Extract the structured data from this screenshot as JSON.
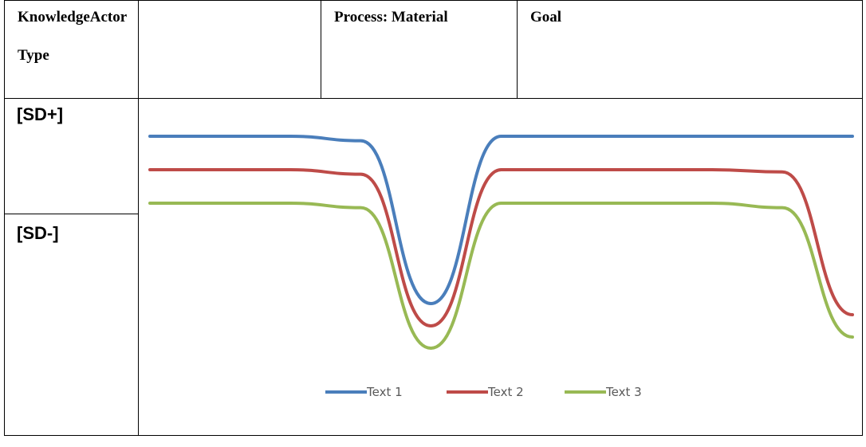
{
  "table": {
    "header": {
      "col1_line1": "KnowledgeActor",
      "col1_line2": "Type",
      "col2": "Process: Material",
      "col3": "Goal"
    },
    "row_labels": [
      "[SD+]",
      "[SD-]"
    ]
  },
  "chart_data": {
    "type": "line",
    "title": "",
    "xlabel": "",
    "ylabel": "",
    "x": [
      0,
      10,
      20,
      30,
      40,
      50,
      60,
      70,
      80,
      90,
      100
    ],
    "ylim": [
      0,
      100
    ],
    "grid": false,
    "legend_position": "bottom",
    "series": [
      {
        "name": "Text 1",
        "color": "#4a7ebb",
        "values": [
          90,
          90,
          90,
          88,
          15,
          90,
          90,
          90,
          90,
          90,
          90
        ]
      },
      {
        "name": "Text 2",
        "color": "#be4b48",
        "values": [
          75,
          75,
          75,
          73,
          5,
          75,
          75,
          75,
          75,
          74,
          10
        ]
      },
      {
        "name": "Text 3",
        "color": "#98b954",
        "values": [
          60,
          60,
          60,
          58,
          -5,
          60,
          60,
          60,
          60,
          58,
          0
        ]
      }
    ]
  }
}
